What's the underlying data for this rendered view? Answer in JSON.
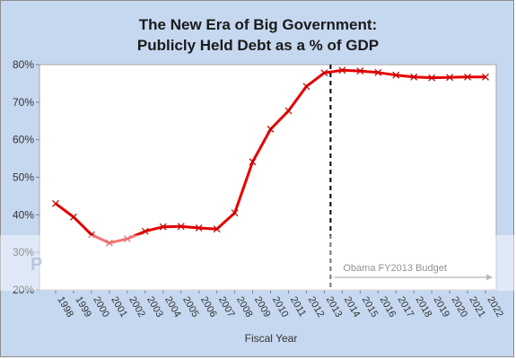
{
  "chart_data": {
    "type": "line",
    "title_line1": "The New Era of Big Government:",
    "title_line2": "Publicly Held Debt as a % of GDP",
    "xlabel": "Fiscal Year",
    "ylabel": "",
    "categories": [
      "1998",
      "1999",
      "2000",
      "2001",
      "2002",
      "2003",
      "2004",
      "2005",
      "2006",
      "2007",
      "2008",
      "2009",
      "2010",
      "2011",
      "2012",
      "2013",
      "2014",
      "2015",
      "2016",
      "2017",
      "2018",
      "2019",
      "2020",
      "2021",
      "2022"
    ],
    "series": [
      {
        "values": [
          43.0,
          39.4,
          34.7,
          32.5,
          33.6,
          35.6,
          36.8,
          36.9,
          36.5,
          36.2,
          40.5,
          54.1,
          62.8,
          67.7,
          74.2,
          77.8,
          78.5,
          78.3,
          77.9,
          77.2,
          76.7,
          76.5,
          76.6,
          76.7,
          76.7
        ],
        "color": "#e60000"
      }
    ],
    "ylim": [
      20,
      80
    ],
    "yticks": [
      "20%",
      "30%",
      "40%",
      "50%",
      "60%",
      "70%",
      "80%"
    ],
    "grid": false,
    "annotation": {
      "label": "Obama FY2013 Budget",
      "start_year": "2013"
    }
  },
  "watermark": "P"
}
